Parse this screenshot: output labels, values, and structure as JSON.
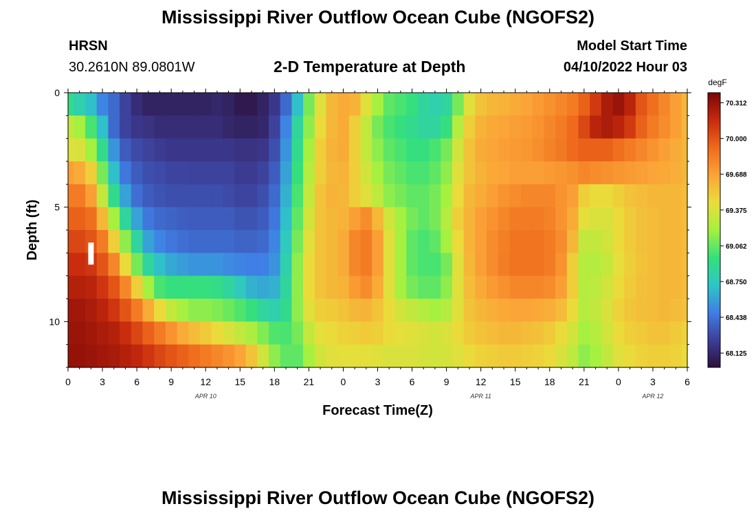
{
  "page": {
    "title": "Mississippi River Outflow Ocean Cube (NGOFS2)",
    "title_repeat": "Mississippi River Outflow Ocean Cube (NGOFS2)",
    "station_name": "HRSN",
    "station_coords": "30.2610N  89.0801W",
    "plot_title": "2-D Temperature at Depth",
    "model_start_label": "Model Start Time",
    "model_start_value": "04/10/2022 Hour 03"
  },
  "chart_data": {
    "type": "heatmap",
    "title": "2-D Temperature at Depth",
    "xlabel": "Forecast Time(Z)",
    "ylabel": "Depth (ft)",
    "xlim": [
      0,
      54
    ],
    "ylim": [
      0,
      12
    ],
    "x_major_ticks": [
      0,
      3,
      6,
      9,
      12,
      15,
      18,
      21,
      24,
      27,
      30,
      33,
      36,
      39,
      42,
      45,
      48,
      51,
      54
    ],
    "x_tick_labels": [
      "0",
      "3",
      "6",
      "9",
      "12",
      "15",
      "18",
      "21",
      "0",
      "3",
      "6",
      "9",
      "12",
      "15",
      "18",
      "21",
      "0",
      "3",
      "6"
    ],
    "date_labels": [
      {
        "x": 12,
        "text": "APR 10"
      },
      {
        "x": 36,
        "text": "APR 11"
      },
      {
        "x": 51,
        "text": "APR 12"
      }
    ],
    "y_tick_values": [
      0,
      5,
      10
    ],
    "y_tick_labels": [
      "0",
      "5",
      "10"
    ],
    "colorbar": {
      "unit": "degF",
      "min": 68.0,
      "max": 70.4,
      "tick_labels": [
        "70.312",
        "70.000",
        "69.688",
        "69.375",
        "69.062",
        "68.750",
        "68.438",
        "68.125"
      ],
      "tick_values": [
        70.312,
        70.0,
        69.688,
        69.375,
        69.062,
        68.75,
        68.438,
        68.125
      ],
      "colors": [
        "#2b0f3a",
        "#3d3f9a",
        "#3f7fe6",
        "#2ec6c6",
        "#35e07a",
        "#a6f040",
        "#eadd3a",
        "#fba437",
        "#ef6a1c",
        "#c72a0d",
        "#7a0606"
      ]
    },
    "time_step_hours": 1,
    "depths_ft": [
      0,
      1,
      2,
      3,
      4,
      5,
      6,
      7,
      8,
      9,
      10,
      11
    ],
    "marker": {
      "x": 2,
      "depth_ft": 7.0
    },
    "values_degF": [
      [
        68.9,
        68.8,
        68.7,
        68.5,
        68.4,
        68.25,
        68.15,
        68.1,
        68.1,
        68.1,
        68.1,
        68.1,
        68.1,
        68.12,
        68.1,
        68.05,
        68.05,
        68.1,
        68.2,
        68.4,
        68.7,
        69.1,
        69.4,
        69.6,
        69.65,
        69.62,
        69.4,
        69.2,
        69.05,
        69.0,
        68.95,
        68.85,
        68.8,
        68.85,
        69.1,
        69.4,
        69.55,
        69.6,
        69.62,
        69.65,
        69.68,
        69.72,
        69.76,
        69.8,
        69.85,
        69.95,
        70.1,
        70.25,
        70.3,
        70.2,
        70.0,
        69.9,
        69.8,
        69.7,
        69.6
      ],
      [
        69.3,
        69.2,
        69.0,
        68.7,
        68.4,
        68.25,
        68.2,
        68.18,
        68.15,
        68.15,
        68.15,
        68.15,
        68.15,
        68.15,
        68.12,
        68.1,
        68.1,
        68.12,
        68.25,
        68.5,
        68.85,
        69.15,
        69.45,
        69.6,
        69.65,
        69.5,
        69.3,
        69.1,
        69.0,
        68.95,
        68.9,
        68.85,
        68.85,
        68.95,
        69.25,
        69.5,
        69.62,
        69.66,
        69.68,
        69.7,
        69.72,
        69.75,
        69.8,
        69.85,
        69.92,
        70.05,
        70.2,
        70.25,
        70.2,
        70.1,
        69.95,
        69.85,
        69.78,
        69.7,
        69.6
      ],
      [
        69.4,
        69.38,
        69.2,
        68.9,
        68.55,
        68.35,
        68.28,
        68.25,
        68.22,
        68.2,
        68.2,
        68.2,
        68.2,
        68.2,
        68.2,
        68.18,
        68.18,
        68.2,
        68.3,
        68.55,
        68.9,
        69.2,
        69.5,
        69.62,
        69.65,
        69.5,
        69.3,
        69.15,
        69.05,
        69.0,
        68.95,
        68.95,
        69.0,
        69.1,
        69.35,
        69.55,
        69.65,
        69.68,
        69.7,
        69.72,
        69.74,
        69.77,
        69.82,
        69.86,
        69.92,
        69.95,
        69.95,
        69.95,
        69.9,
        69.85,
        69.8,
        69.75,
        69.7,
        69.65,
        69.6
      ],
      [
        69.7,
        69.65,
        69.5,
        69.1,
        68.7,
        68.45,
        68.35,
        68.3,
        68.28,
        68.26,
        68.26,
        68.25,
        68.25,
        68.25,
        68.25,
        68.22,
        68.22,
        68.25,
        68.35,
        68.6,
        68.95,
        69.25,
        69.5,
        69.6,
        69.62,
        69.5,
        69.35,
        69.2,
        69.1,
        69.05,
        69.0,
        69.0,
        69.05,
        69.15,
        69.4,
        69.55,
        69.62,
        69.66,
        69.68,
        69.7,
        69.7,
        69.7,
        69.72,
        69.74,
        69.76,
        69.8,
        69.78,
        69.76,
        69.74,
        69.72,
        69.7,
        69.68,
        69.66,
        69.64,
        69.6
      ],
      [
        69.85,
        69.85,
        69.7,
        69.3,
        68.9,
        68.6,
        68.42,
        68.35,
        68.32,
        68.3,
        68.3,
        68.3,
        68.3,
        68.3,
        68.28,
        68.26,
        68.26,
        68.3,
        68.4,
        68.65,
        69.0,
        69.3,
        69.55,
        69.62,
        69.6,
        69.5,
        69.4,
        69.28,
        69.15,
        69.1,
        69.05,
        69.05,
        69.1,
        69.2,
        69.45,
        69.6,
        69.65,
        69.7,
        69.75,
        69.78,
        69.8,
        69.8,
        69.8,
        69.75,
        69.7,
        69.5,
        69.45,
        69.45,
        69.5,
        69.55,
        69.58,
        69.6,
        69.6,
        69.6,
        69.58
      ],
      [
        69.95,
        69.95,
        69.9,
        69.6,
        69.2,
        68.85,
        68.6,
        68.45,
        68.4,
        68.38,
        68.36,
        68.35,
        68.35,
        68.35,
        68.35,
        68.32,
        68.32,
        68.35,
        68.45,
        68.7,
        69.05,
        69.35,
        69.55,
        69.6,
        69.62,
        69.7,
        69.78,
        69.6,
        69.35,
        69.2,
        69.1,
        69.05,
        69.1,
        69.25,
        69.5,
        69.62,
        69.7,
        69.75,
        69.8,
        69.85,
        69.85,
        69.85,
        69.82,
        69.75,
        69.65,
        69.42,
        69.38,
        69.38,
        69.45,
        69.52,
        69.56,
        69.58,
        69.6,
        69.6,
        69.58
      ],
      [
        70.05,
        70.05,
        70.0,
        69.85,
        69.5,
        69.15,
        68.85,
        68.6,
        68.5,
        68.45,
        68.42,
        68.4,
        68.4,
        68.4,
        68.4,
        68.38,
        68.38,
        68.4,
        68.5,
        68.75,
        69.1,
        69.4,
        69.55,
        69.6,
        69.65,
        69.8,
        69.85,
        69.7,
        69.4,
        69.2,
        69.05,
        69.0,
        69.05,
        69.2,
        69.45,
        69.62,
        69.7,
        69.78,
        69.83,
        69.88,
        69.88,
        69.88,
        69.85,
        69.78,
        69.6,
        69.3,
        69.3,
        69.35,
        69.45,
        69.52,
        69.56,
        69.58,
        69.6,
        69.6,
        69.58
      ],
      [
        70.15,
        70.15,
        70.12,
        70.0,
        69.8,
        69.45,
        69.1,
        68.85,
        68.7,
        68.62,
        68.58,
        68.55,
        68.55,
        68.55,
        68.52,
        68.5,
        68.48,
        68.48,
        68.55,
        68.8,
        69.15,
        69.45,
        69.55,
        69.6,
        69.65,
        69.8,
        69.85,
        69.7,
        69.4,
        69.2,
        69.05,
        69.0,
        69.0,
        69.1,
        69.4,
        69.6,
        69.7,
        69.78,
        69.84,
        69.88,
        69.88,
        69.88,
        69.85,
        69.75,
        69.5,
        69.25,
        69.25,
        69.3,
        69.42,
        69.5,
        69.55,
        69.58,
        69.6,
        69.6,
        69.58
      ],
      [
        70.22,
        70.22,
        70.2,
        70.12,
        70.0,
        69.8,
        69.5,
        69.2,
        69.0,
        68.95,
        68.95,
        68.95,
        68.95,
        68.92,
        68.85,
        68.75,
        68.65,
        68.62,
        68.65,
        68.85,
        69.15,
        69.45,
        69.55,
        69.6,
        69.62,
        69.72,
        69.78,
        69.65,
        69.4,
        69.2,
        69.1,
        69.05,
        69.05,
        69.15,
        69.4,
        69.58,
        69.66,
        69.72,
        69.76,
        69.8,
        69.8,
        69.8,
        69.78,
        69.7,
        69.5,
        69.25,
        69.28,
        69.35,
        69.45,
        69.52,
        69.56,
        69.58,
        69.6,
        69.6,
        69.58
      ],
      [
        70.28,
        70.28,
        70.25,
        70.2,
        70.12,
        70.0,
        69.85,
        69.65,
        69.45,
        69.3,
        69.2,
        69.15,
        69.15,
        69.12,
        69.08,
        69.02,
        68.95,
        68.85,
        68.8,
        68.9,
        69.15,
        69.4,
        69.5,
        69.52,
        69.55,
        69.6,
        69.62,
        69.55,
        69.45,
        69.35,
        69.3,
        69.25,
        69.2,
        69.25,
        69.4,
        69.55,
        69.6,
        69.64,
        69.66,
        69.68,
        69.68,
        69.66,
        69.64,
        69.58,
        69.45,
        69.25,
        69.3,
        69.38,
        69.48,
        69.54,
        69.57,
        69.58,
        69.6,
        69.58,
        69.55
      ],
      [
        70.3,
        70.3,
        70.28,
        70.25,
        70.22,
        70.15,
        70.05,
        69.95,
        69.85,
        69.75,
        69.65,
        69.58,
        69.52,
        69.45,
        69.38,
        69.3,
        69.22,
        69.12,
        69.02,
        69.0,
        69.1,
        69.3,
        69.42,
        69.45,
        69.48,
        69.5,
        69.52,
        69.5,
        69.45,
        69.42,
        69.4,
        69.38,
        69.35,
        69.38,
        69.45,
        69.52,
        69.55,
        69.58,
        69.6,
        69.6,
        69.58,
        69.56,
        69.52,
        69.45,
        69.35,
        69.2,
        69.25,
        69.35,
        69.45,
        69.5,
        69.52,
        69.55,
        69.55,
        69.52,
        69.48
      ],
      [
        70.32,
        70.32,
        70.3,
        70.28,
        70.26,
        70.22,
        70.18,
        70.12,
        70.05,
        70.0,
        69.95,
        69.9,
        69.85,
        69.8,
        69.75,
        69.68,
        69.55,
        69.35,
        69.15,
        69.05,
        69.05,
        69.2,
        69.35,
        69.4,
        69.42,
        69.42,
        69.42,
        69.4,
        69.38,
        69.38,
        69.38,
        69.36,
        69.35,
        69.36,
        69.4,
        69.45,
        69.48,
        69.5,
        69.52,
        69.52,
        69.5,
        69.48,
        69.45,
        69.38,
        69.28,
        69.15,
        69.2,
        69.3,
        69.4,
        69.45,
        69.48,
        69.5,
        69.5,
        69.48,
        69.45
      ]
    ]
  }
}
